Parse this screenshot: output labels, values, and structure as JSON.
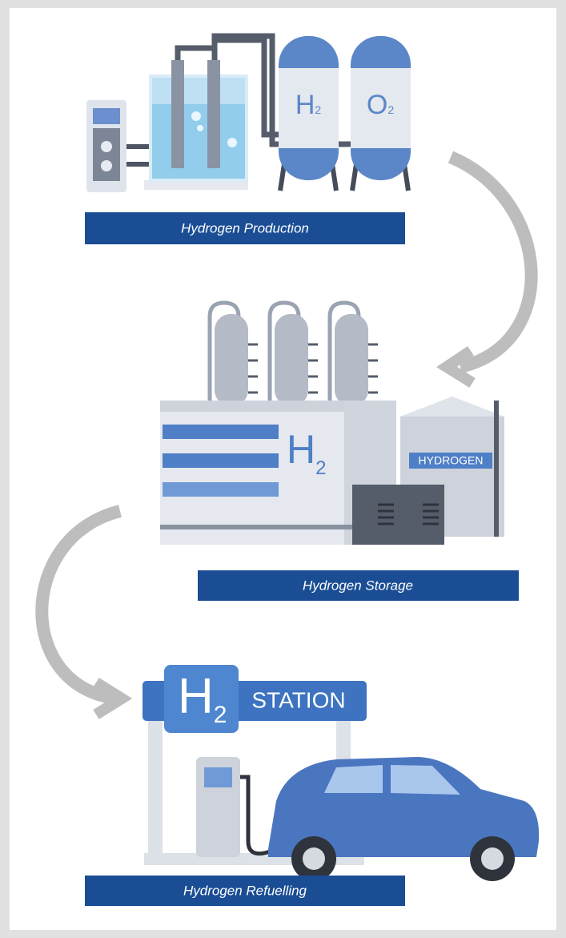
{
  "production": {
    "label": "Hydrogen Production",
    "tanks": [
      {
        "element": "H",
        "subscript": "2"
      },
      {
        "element": "O",
        "subscript": "2"
      }
    ]
  },
  "storage": {
    "label": "Hydrogen Storage",
    "building_sign": {
      "element": "H",
      "subscript": "2"
    },
    "tank_label": "HYDROGEN"
  },
  "refuelling": {
    "label": "Hydrogen Refuelling",
    "sign": {
      "element": "H",
      "subscript": "2"
    },
    "sign_text": "STATION"
  }
}
